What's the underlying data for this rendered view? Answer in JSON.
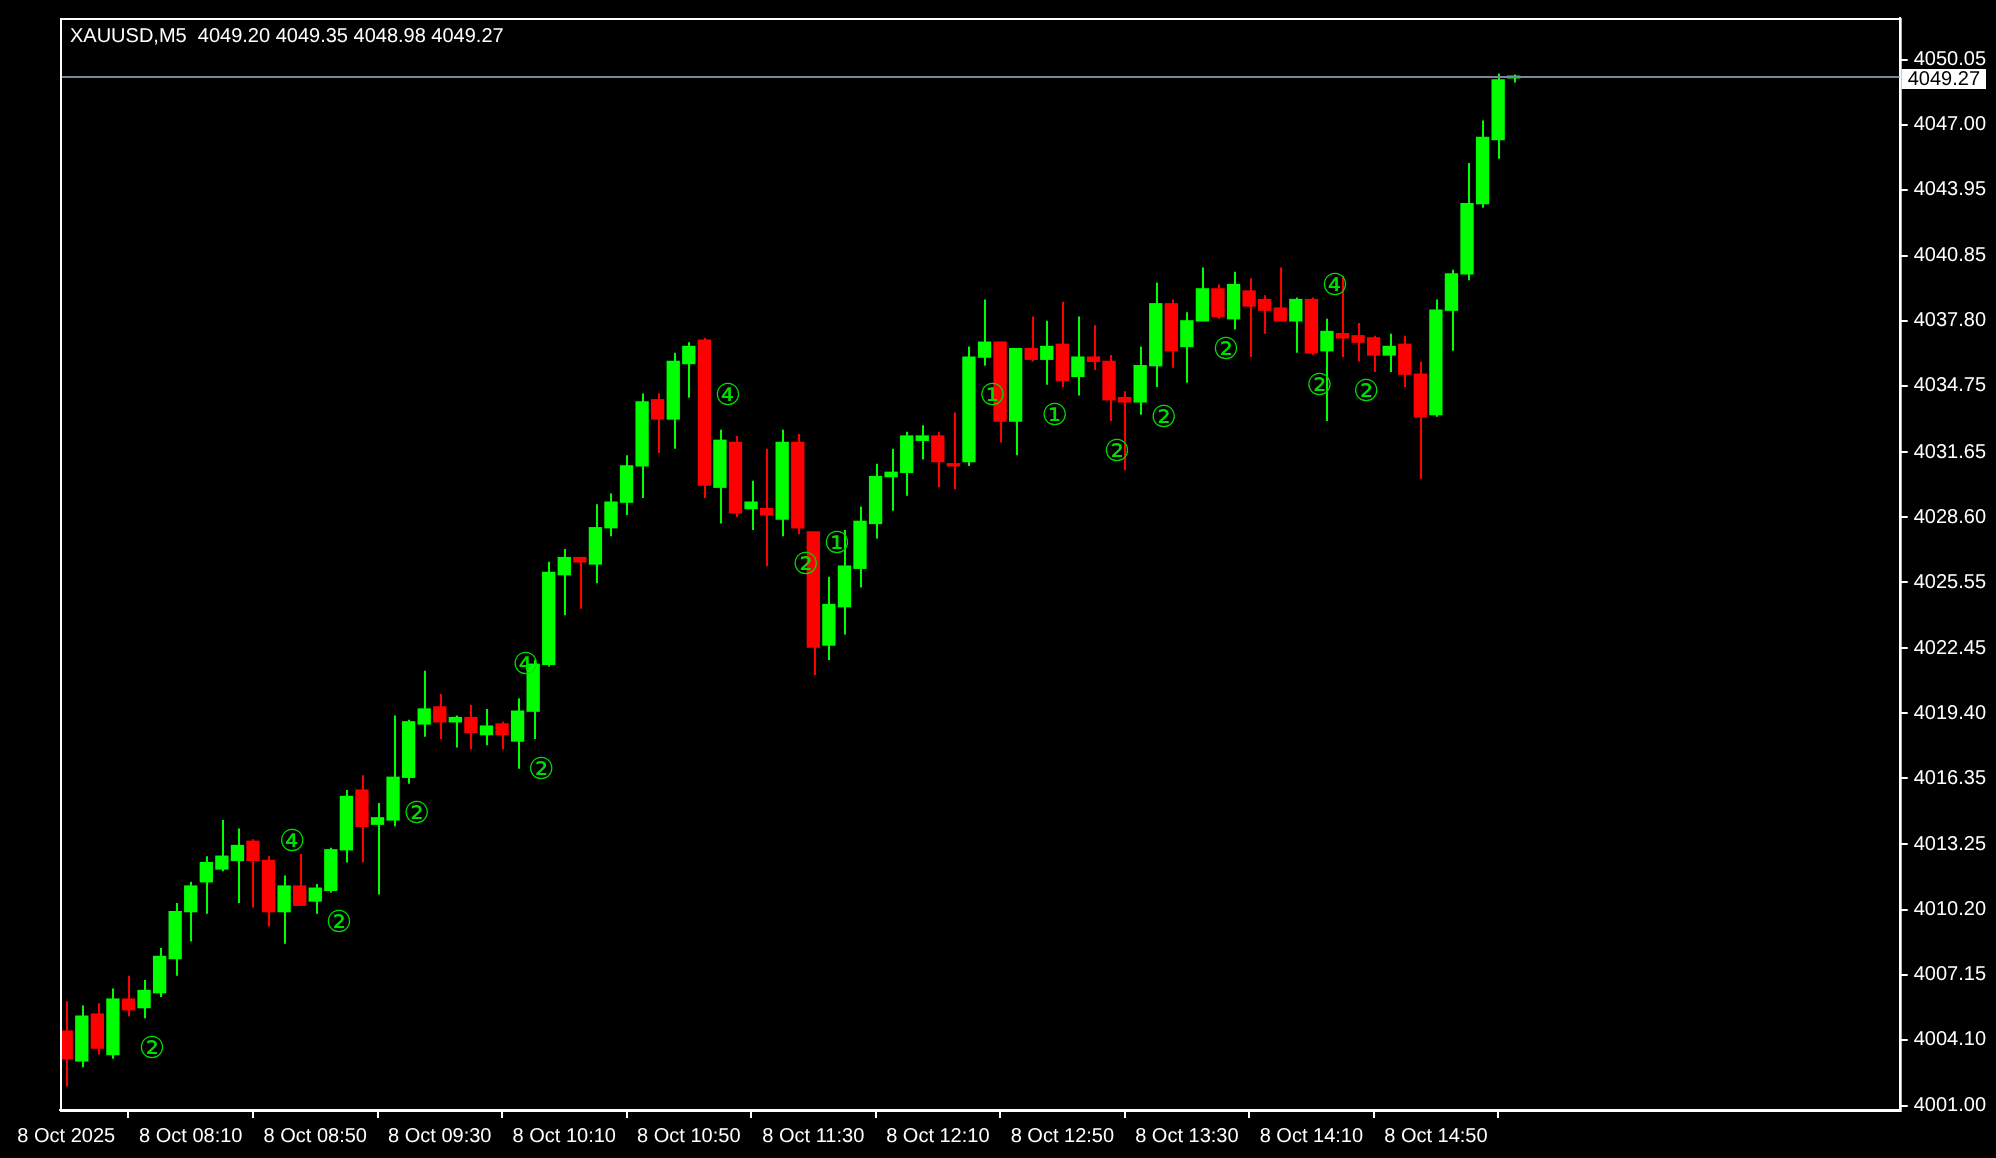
{
  "chart_data": {
    "type": "candlestick",
    "title": "XAUUSD,M5  4049.20 4049.35 4048.98 4049.27",
    "x": [
      "2025-10-08T07:30",
      "2025-10-08T07:35",
      "2025-10-08T07:40",
      "2025-10-08T07:45",
      "2025-10-08T07:50",
      "2025-10-08T07:55",
      "2025-10-08T08:00",
      "2025-10-08T08:05",
      "2025-10-08T08:10",
      "2025-10-08T08:15",
      "2025-10-08T08:20",
      "2025-10-08T08:25",
      "2025-10-08T08:30",
      "2025-10-08T08:35",
      "2025-10-08T08:40",
      "2025-10-08T08:45",
      "2025-10-08T08:50",
      "2025-10-08T08:55",
      "2025-10-08T09:00",
      "2025-10-08T09:05",
      "2025-10-08T09:10",
      "2025-10-08T09:15",
      "2025-10-08T09:20",
      "2025-10-08T09:25",
      "2025-10-08T09:30",
      "2025-10-08T09:35",
      "2025-10-08T09:40",
      "2025-10-08T09:45",
      "2025-10-08T09:50",
      "2025-10-08T09:55",
      "2025-10-08T10:00",
      "2025-10-08T10:05",
      "2025-10-08T10:10",
      "2025-10-08T10:15",
      "2025-10-08T10:20",
      "2025-10-08T10:25",
      "2025-10-08T10:30",
      "2025-10-08T10:35",
      "2025-10-08T10:40",
      "2025-10-08T10:45",
      "2025-10-08T10:50",
      "2025-10-08T10:55",
      "2025-10-08T11:00",
      "2025-10-08T11:05",
      "2025-10-08T11:10",
      "2025-10-08T11:15",
      "2025-10-08T11:20",
      "2025-10-08T11:25",
      "2025-10-08T11:30",
      "2025-10-08T11:35",
      "2025-10-08T11:40",
      "2025-10-08T11:45",
      "2025-10-08T11:50",
      "2025-10-08T11:55",
      "2025-10-08T12:00",
      "2025-10-08T12:05",
      "2025-10-08T12:10",
      "2025-10-08T12:15",
      "2025-10-08T12:20",
      "2025-10-08T12:25",
      "2025-10-08T12:30",
      "2025-10-08T12:35",
      "2025-10-08T12:40",
      "2025-10-08T12:45",
      "2025-10-08T12:50",
      "2025-10-08T12:55",
      "2025-10-08T13:00",
      "2025-10-08T13:05",
      "2025-10-08T13:10",
      "2025-10-08T13:15",
      "2025-10-08T13:20",
      "2025-10-08T13:25",
      "2025-10-08T13:30",
      "2025-10-08T13:35",
      "2025-10-08T13:40",
      "2025-10-08T13:45",
      "2025-10-08T13:50",
      "2025-10-08T13:55",
      "2025-10-08T14:00",
      "2025-10-08T14:05",
      "2025-10-08T14:10",
      "2025-10-08T14:15",
      "2025-10-08T14:20",
      "2025-10-08T14:25",
      "2025-10-08T14:30",
      "2025-10-08T14:35",
      "2025-10-08T14:40",
      "2025-10-08T14:45",
      "2025-10-08T14:50",
      "2025-10-08T14:55",
      "2025-10-08T15:00",
      "2025-10-08T15:05",
      "2025-10-08T15:10",
      "2025-10-08T15:15"
    ],
    "ohlc": [
      [
        4004.5,
        4005.9,
        4001.9,
        4003.2
      ],
      [
        4003.1,
        4005.7,
        4002.8,
        4005.2
      ],
      [
        4005.3,
        4005.8,
        4003.4,
        4003.7
      ],
      [
        4003.4,
        4006.5,
        4003.2,
        4006.0
      ],
      [
        4006.0,
        4007.1,
        4005.2,
        4005.5
      ],
      [
        4005.6,
        4006.9,
        4005.1,
        4006.4
      ],
      [
        4006.3,
        4008.4,
        4006.1,
        4008.0
      ],
      [
        4007.9,
        4010.5,
        4007.1,
        4010.1
      ],
      [
        4010.1,
        4011.5,
        4008.7,
        4011.3
      ],
      [
        4011.5,
        4012.7,
        4010.0,
        4012.4
      ],
      [
        4012.1,
        4014.4,
        4012.0,
        4012.7
      ],
      [
        4012.5,
        4014.0,
        4010.5,
        4013.2
      ],
      [
        4013.4,
        4013.5,
        4010.3,
        4012.5
      ],
      [
        4012.5,
        4012.7,
        4009.4,
        4010.1
      ],
      [
        4010.1,
        4011.8,
        4008.6,
        4011.3
      ],
      [
        4011.3,
        4012.8,
        4010.4,
        4010.4
      ],
      [
        4010.6,
        4011.4,
        4010.0,
        4011.2
      ],
      [
        4011.1,
        4013.1,
        4011.0,
        4013.0
      ],
      [
        4013.0,
        4015.8,
        4012.4,
        4015.5
      ],
      [
        4015.8,
        4016.5,
        4012.4,
        4014.1
      ],
      [
        4014.2,
        4015.2,
        4010.9,
        4014.5
      ],
      [
        4014.4,
        4019.3,
        4014.1,
        4016.4
      ],
      [
        4016.4,
        4019.1,
        4016.1,
        4019.0
      ],
      [
        4018.9,
        4021.4,
        4018.3,
        4019.6
      ],
      [
        4019.7,
        4020.3,
        4018.2,
        4019.0
      ],
      [
        4019.0,
        4019.3,
        4017.8,
        4019.2
      ],
      [
        4019.2,
        4019.8,
        4017.7,
        4018.5
      ],
      [
        4018.4,
        4019.6,
        4017.9,
        4018.8
      ],
      [
        4018.9,
        4019.0,
        4017.7,
        4018.4
      ],
      [
        4018.1,
        4020.1,
        4016.8,
        4019.5
      ],
      [
        4019.5,
        4021.9,
        4018.2,
        4021.7
      ],
      [
        4021.7,
        4026.5,
        4021.6,
        4026.0
      ],
      [
        4025.9,
        4027.1,
        4024.0,
        4026.7
      ],
      [
        4026.7,
        4026.7,
        4024.3,
        4026.5
      ],
      [
        4026.4,
        4029.2,
        4025.5,
        4028.1
      ],
      [
        4028.1,
        4029.7,
        4027.7,
        4029.3
      ],
      [
        4029.3,
        4031.5,
        4028.7,
        4031.0
      ],
      [
        4031.0,
        4034.4,
        4029.5,
        4034.0
      ],
      [
        4034.1,
        4034.4,
        4031.6,
        4033.2
      ],
      [
        4033.2,
        4036.3,
        4031.8,
        4035.9
      ],
      [
        4035.8,
        4036.8,
        4034.2,
        4036.6
      ],
      [
        4036.9,
        4037.0,
        4029.5,
        4030.1
      ],
      [
        4030.0,
        4032.7,
        4028.3,
        4032.2
      ],
      [
        4032.1,
        4032.4,
        4028.6,
        4028.8
      ],
      [
        4029.0,
        4030.3,
        4028.0,
        4029.3
      ],
      [
        4029.0,
        4031.8,
        4026.3,
        4028.7
      ],
      [
        4028.5,
        4032.7,
        4027.7,
        4032.1
      ],
      [
        4032.1,
        4032.5,
        4027.8,
        4028.1
      ],
      [
        4027.9,
        4027.9,
        4021.2,
        4022.5
      ],
      [
        4022.6,
        4025.8,
        4021.9,
        4024.5
      ],
      [
        4024.4,
        4028.0,
        4023.1,
        4026.3
      ],
      [
        4026.2,
        4029.1,
        4025.3,
        4028.4
      ],
      [
        4028.3,
        4031.1,
        4027.6,
        4030.5
      ],
      [
        4030.5,
        4031.8,
        4028.9,
        4030.7
      ],
      [
        4030.7,
        4032.6,
        4029.6,
        4032.4
      ],
      [
        4032.2,
        4032.9,
        4031.3,
        4032.4
      ],
      [
        4032.4,
        4032.6,
        4030.0,
        4031.2
      ],
      [
        4031.1,
        4033.5,
        4029.9,
        4031.0
      ],
      [
        4031.2,
        4036.6,
        4031.0,
        4036.1
      ],
      [
        4036.1,
        4038.8,
        4035.7,
        4036.8
      ],
      [
        4036.8,
        4036.8,
        4032.1,
        4033.1
      ],
      [
        4033.1,
        4036.5,
        4031.5,
        4036.5
      ],
      [
        4036.5,
        4038.0,
        4035.9,
        4036.0
      ],
      [
        4036.0,
        4037.8,
        4034.8,
        4036.6
      ],
      [
        4036.7,
        4038.7,
        4034.7,
        4035.0
      ],
      [
        4035.2,
        4038.0,
        4034.3,
        4036.1
      ],
      [
        4036.1,
        4037.6,
        4035.5,
        4035.9
      ],
      [
        4035.9,
        4036.2,
        4033.1,
        4034.1
      ],
      [
        4034.2,
        4034.5,
        4030.8,
        4034.0
      ],
      [
        4034.0,
        4036.6,
        4033.4,
        4035.7
      ],
      [
        4035.7,
        4039.6,
        4034.7,
        4038.6
      ],
      [
        4038.6,
        4038.8,
        4035.6,
        4036.4
      ],
      [
        4036.6,
        4038.2,
        4034.9,
        4037.8
      ],
      [
        4037.8,
        4040.3,
        4037.8,
        4039.3
      ],
      [
        4039.3,
        4039.5,
        4037.9,
        4038.0
      ],
      [
        4037.9,
        4040.1,
        4037.4,
        4039.5
      ],
      [
        4039.2,
        4039.8,
        4036.1,
        4038.5
      ],
      [
        4038.8,
        4039.0,
        4037.2,
        4038.3
      ],
      [
        4038.4,
        4040.3,
        4037.8,
        4037.8
      ],
      [
        4037.8,
        4038.9,
        4036.3,
        4038.8
      ],
      [
        4038.8,
        4038.9,
        4036.2,
        4036.3
      ],
      [
        4036.4,
        4037.9,
        4033.1,
        4037.3
      ],
      [
        4037.2,
        4039.9,
        4036.1,
        4037.0
      ],
      [
        4037.1,
        4037.7,
        4035.9,
        4036.8
      ],
      [
        4037.0,
        4037.1,
        4035.4,
        4036.2
      ],
      [
        4036.2,
        4037.2,
        4035.4,
        4036.6
      ],
      [
        4036.7,
        4037.1,
        4034.7,
        4035.3
      ],
      [
        4035.3,
        4035.9,
        4030.4,
        4033.3
      ],
      [
        4033.4,
        4038.8,
        4033.3,
        4038.3
      ],
      [
        4038.3,
        4040.2,
        4036.4,
        4040.0
      ],
      [
        4040.0,
        4045.2,
        4039.7,
        4043.3
      ],
      [
        4043.3,
        4047.2,
        4043.1,
        4046.4
      ],
      [
        4046.3,
        4049.4,
        4045.4,
        4049.1
      ],
      [
        4049.2,
        4049.35,
        4048.98,
        4049.27
      ]
    ],
    "colors": [
      "#ff0000",
      "#00ff00",
      "#ff0000",
      "#00ff00",
      "#ff0000",
      "#00ff00",
      "#00ff00",
      "#00ff00",
      "#00ff00",
      "#00ff00",
      "#00ff00",
      "#00ff00",
      "#ff0000",
      "#ff0000",
      "#00ff00",
      "#ff0000",
      "#00ff00",
      "#00ff00",
      "#00ff00",
      "#ff0000",
      "#00ff00",
      "#00ff00",
      "#00ff00",
      "#00ff00",
      "#ff0000",
      "#00ff00",
      "#ff0000",
      "#00ff00",
      "#ff0000",
      "#00ff00",
      "#00ff00",
      "#00ff00",
      "#00ff00",
      "#ff0000",
      "#00ff00",
      "#00ff00",
      "#00ff00",
      "#00ff00",
      "#ff0000",
      "#00ff00",
      "#00ff00",
      "#ff0000",
      "#00ff00",
      "#ff0000",
      "#00ff00",
      "#ff0000",
      "#00ff00",
      "#ff0000",
      "#ff0000",
      "#00ff00",
      "#00ff00",
      "#00ff00",
      "#00ff00",
      "#00ff00",
      "#00ff00",
      "#00ff00",
      "#ff0000",
      "#ff0000",
      "#00ff00",
      "#00ff00",
      "#ff0000",
      "#00ff00",
      "#ff0000",
      "#00ff00",
      "#ff0000",
      "#00ff00",
      "#ff0000",
      "#ff0000",
      "#ff0000",
      "#00ff00",
      "#00ff00",
      "#ff0000",
      "#00ff00",
      "#00ff00",
      "#ff0000",
      "#00ff00",
      "#ff0000",
      "#ff0000",
      "#ff0000",
      "#00ff00",
      "#ff0000",
      "#00ff00",
      "#ff0000",
      "#ff0000",
      "#ff0000",
      "#00ff00",
      "#ff0000",
      "#ff0000",
      "#00ff00",
      "#00ff00",
      "#00ff00",
      "#00ff00",
      "#00ff00",
      "#00ff00"
    ],
    "xlim": [
      "2025-10-08T07:28",
      "2025-10-08T17:19"
    ],
    "xticks": [
      {
        "value": "2025-10-08T07:30",
        "label": "8 Oct 2025"
      },
      {
        "value": "2025-10-08T08:10",
        "label": "8 Oct 08:10"
      },
      {
        "value": "2025-10-08T08:50",
        "label": "8 Oct 08:50"
      },
      {
        "value": "2025-10-08T09:30",
        "label": "8 Oct 09:30"
      },
      {
        "value": "2025-10-08T10:10",
        "label": "8 Oct 10:10"
      },
      {
        "value": "2025-10-08T10:50",
        "label": "8 Oct 10:50"
      },
      {
        "value": "2025-10-08T11:30",
        "label": "8 Oct 11:30"
      },
      {
        "value": "2025-10-08T12:10",
        "label": "8 Oct 12:10"
      },
      {
        "value": "2025-10-08T12:50",
        "label": "8 Oct 12:50"
      },
      {
        "value": "2025-10-08T13:30",
        "label": "8 Oct 13:30"
      },
      {
        "value": "2025-10-08T14:10",
        "label": "8 Oct 14:10"
      },
      {
        "value": "2025-10-08T14:50",
        "label": "8 Oct 14:50"
      }
    ],
    "ylim": [
      4000.8,
      4052.0
    ],
    "yticks": [
      {
        "value": 4001,
        "label": "4001.00"
      },
      {
        "value": 4004.1,
        "label": "4004.10"
      },
      {
        "value": 4007.15,
        "label": "4007.15"
      },
      {
        "value": 4010.2,
        "label": "4010.20"
      },
      {
        "value": 4013.25,
        "label": "4013.25"
      },
      {
        "value": 4016.35,
        "label": "4016.35"
      },
      {
        "value": 4019.4,
        "label": "4019.40"
      },
      {
        "value": 4022.45,
        "label": "4022.45"
      },
      {
        "value": 4025.55,
        "label": "4025.55"
      },
      {
        "value": 4028.6,
        "label": "4028.60"
      },
      {
        "value": 4031.65,
        "label": "4031.65"
      },
      {
        "value": 4034.75,
        "label": "4034.75"
      },
      {
        "value": 4037.8,
        "label": "4037.80"
      },
      {
        "value": 4040.85,
        "label": "4040.85"
      },
      {
        "value": 4043.95,
        "label": "4043.95"
      },
      {
        "value": 4047,
        "label": "4047.00"
      },
      {
        "value": 4050.05,
        "label": "4050.05"
      }
    ],
    "ref_lines": [
      {
        "axis": "y",
        "value": 4049.27,
        "label": "4049.27",
        "color": "#778899"
      }
    ],
    "annotations": [
      {
        "text": "②",
        "x": "2025-10-08T07:55",
        "y": 4005.1
      },
      {
        "text": "②",
        "x": "2025-10-08T08:55",
        "y": 4011.0
      },
      {
        "text": "④",
        "x": "2025-10-08T08:40",
        "y": 4011.8
      },
      {
        "text": "②",
        "x": "2025-10-08T09:20",
        "y": 4016.1
      },
      {
        "text": "②",
        "x": "2025-10-08T10:00",
        "y": 4018.2
      },
      {
        "text": "④",
        "x": "2025-10-08T09:55",
        "y": 4020.1
      },
      {
        "text": "④",
        "x": "2025-10-08T11:00",
        "y": 4032.7
      },
      {
        "text": "①",
        "x": "2025-10-08T11:35",
        "y": 4025.8
      },
      {
        "text": "②",
        "x": "2025-10-08T11:25",
        "y": 4027.8
      },
      {
        "text": "①",
        "x": "2025-10-08T12:25",
        "y": 4035.7
      },
      {
        "text": "①",
        "x": "2025-10-08T12:45",
        "y": 4034.8
      },
      {
        "text": "②",
        "x": "2025-10-08T13:05",
        "y": 4033.1
      },
      {
        "text": "②",
        "x": "2025-10-08T13:20",
        "y": 4034.7
      },
      {
        "text": "②",
        "x": "2025-10-08T13:40",
        "y": 4037.9
      },
      {
        "text": "④",
        "x": "2025-10-08T14:15",
        "y": 4037.9
      },
      {
        "text": "②",
        "x": "2025-10-08T14:10",
        "y": 4036.2
      },
      {
        "text": "②",
        "x": "2025-10-08T14:25",
        "y": 4035.9
      }
    ],
    "legend": false
  }
}
